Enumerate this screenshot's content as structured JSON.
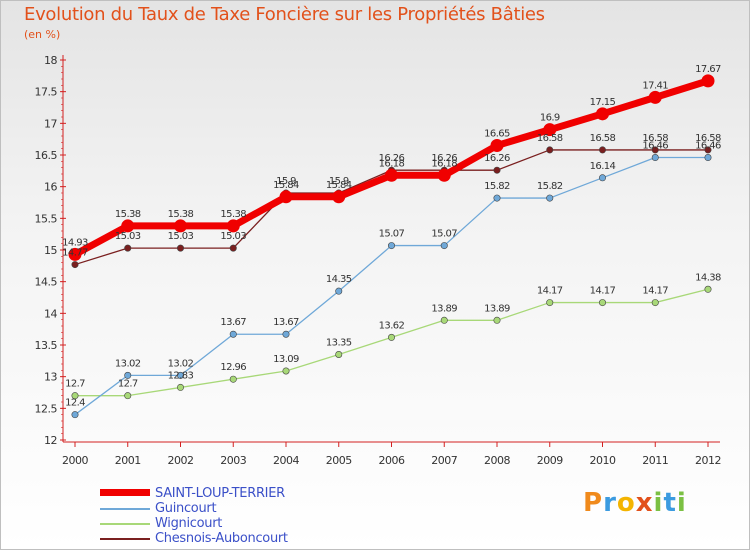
{
  "header": {
    "title": "Evolution du Taux de Taxe Foncière sur les Propriétés Bâties",
    "unit": "(en %)"
  },
  "logo": {
    "text": "Proxiti",
    "letters": [
      "P",
      "r",
      "o",
      "x",
      "i",
      "t",
      "i"
    ]
  },
  "chart_data": {
    "type": "line",
    "title": "Evolution du Taux de Taxe Foncière sur les Propriétés Bâties",
    "ylabel": "(en %)",
    "x": [
      "2000",
      "2001",
      "2002",
      "2003",
      "2004",
      "2005",
      "2006",
      "2007",
      "2008",
      "2009",
      "2010",
      "2011",
      "2012"
    ],
    "ylim": [
      12,
      18
    ],
    "yticks": [
      12,
      12.5,
      13,
      13.5,
      14,
      14.5,
      15,
      15.5,
      16,
      16.5,
      17,
      17.5,
      18
    ],
    "grid": false,
    "legend": "bottom-left",
    "series": [
      {
        "name": "Chesnois-Auboncourt",
        "color": "#7a1f1f",
        "values": [
          14.77,
          15.03,
          15.03,
          15.03,
          15.9,
          15.9,
          16.26,
          16.26,
          16.26,
          16.58,
          16.58,
          16.58,
          16.58
        ],
        "labels": [
          "14.77",
          "15.03",
          "15.03",
          "15.03",
          "15.9",
          "15.9",
          "16.26",
          "16.26",
          "16.26",
          "16.58",
          "16.58",
          "16.58",
          "16.58"
        ]
      },
      {
        "name": "Wignicourt",
        "color": "#a8d878",
        "values": [
          12.7,
          12.7,
          12.83,
          12.96,
          13.09,
          13.35,
          13.62,
          13.89,
          13.89,
          14.17,
          14.17,
          14.17,
          14.38
        ],
        "labels": [
          "12.7",
          "12.7",
          "12.83",
          "12.96",
          "13.09",
          "13.35",
          "13.62",
          "13.89",
          "13.89",
          "14.17",
          "14.17",
          "14.17",
          "14.38"
        ]
      },
      {
        "name": "Guincourt",
        "color": "#6fa8d8",
        "values": [
          12.4,
          13.02,
          13.02,
          13.67,
          13.67,
          14.35,
          15.07,
          15.07,
          15.82,
          15.82,
          16.14,
          16.46,
          16.46
        ],
        "labels": [
          "12.4",
          "13.02",
          "13.02",
          "13.67",
          "13.67",
          "14.35",
          "15.07",
          "15.07",
          "15.82",
          "15.82",
          "16.14",
          "16.46",
          "16.46"
        ]
      },
      {
        "name": "SAINT-LOUP-TERRIER",
        "color": "#f00000",
        "values": [
          14.93,
          15.38,
          15.38,
          15.38,
          15.84,
          15.84,
          16.18,
          16.18,
          16.65,
          16.9,
          17.15,
          17.41,
          17.67
        ],
        "labels": [
          "14.93",
          "15.38",
          "15.38",
          "15.38",
          "15.84",
          "15.84",
          "16.18",
          "16.18",
          "16.65",
          "16.9",
          "17.15",
          "17.41",
          "17.67"
        ]
      }
    ],
    "legend_order": [
      "SAINT-LOUP-TERRIER",
      "Guincourt",
      "Wignicourt",
      "Chesnois-Auboncourt"
    ]
  }
}
